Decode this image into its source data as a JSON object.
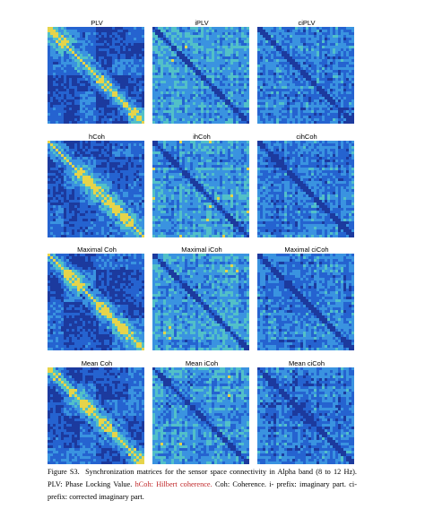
{
  "figure": {
    "panels": [
      {
        "title": "PLV"
      },
      {
        "title": "iPLV"
      },
      {
        "title": "ciPLV"
      },
      {
        "title": "hCoh"
      },
      {
        "title": "ihCoh"
      },
      {
        "title": "cihCoh"
      },
      {
        "title": "Maximal Coh"
      },
      {
        "title": "Maximal iCoh"
      },
      {
        "title": "Maximal ciCoh"
      },
      {
        "title": "Mean Coh"
      },
      {
        "title": "Mean iCoh"
      },
      {
        "title": "Mean ciCoh"
      }
    ]
  },
  "caption": {
    "label": "Figure S3.",
    "text": "Synchronization matrices for the sensor space connectivity in Alpha band (8 to 12 Hz). PLV: Phase Locking Value.",
    "highlight": "hCoh: Hilbert coherence.",
    "rest": "Coh: Coherence. i- prefix: imaginary part. ci- prefix: corrected imaginary part."
  }
}
